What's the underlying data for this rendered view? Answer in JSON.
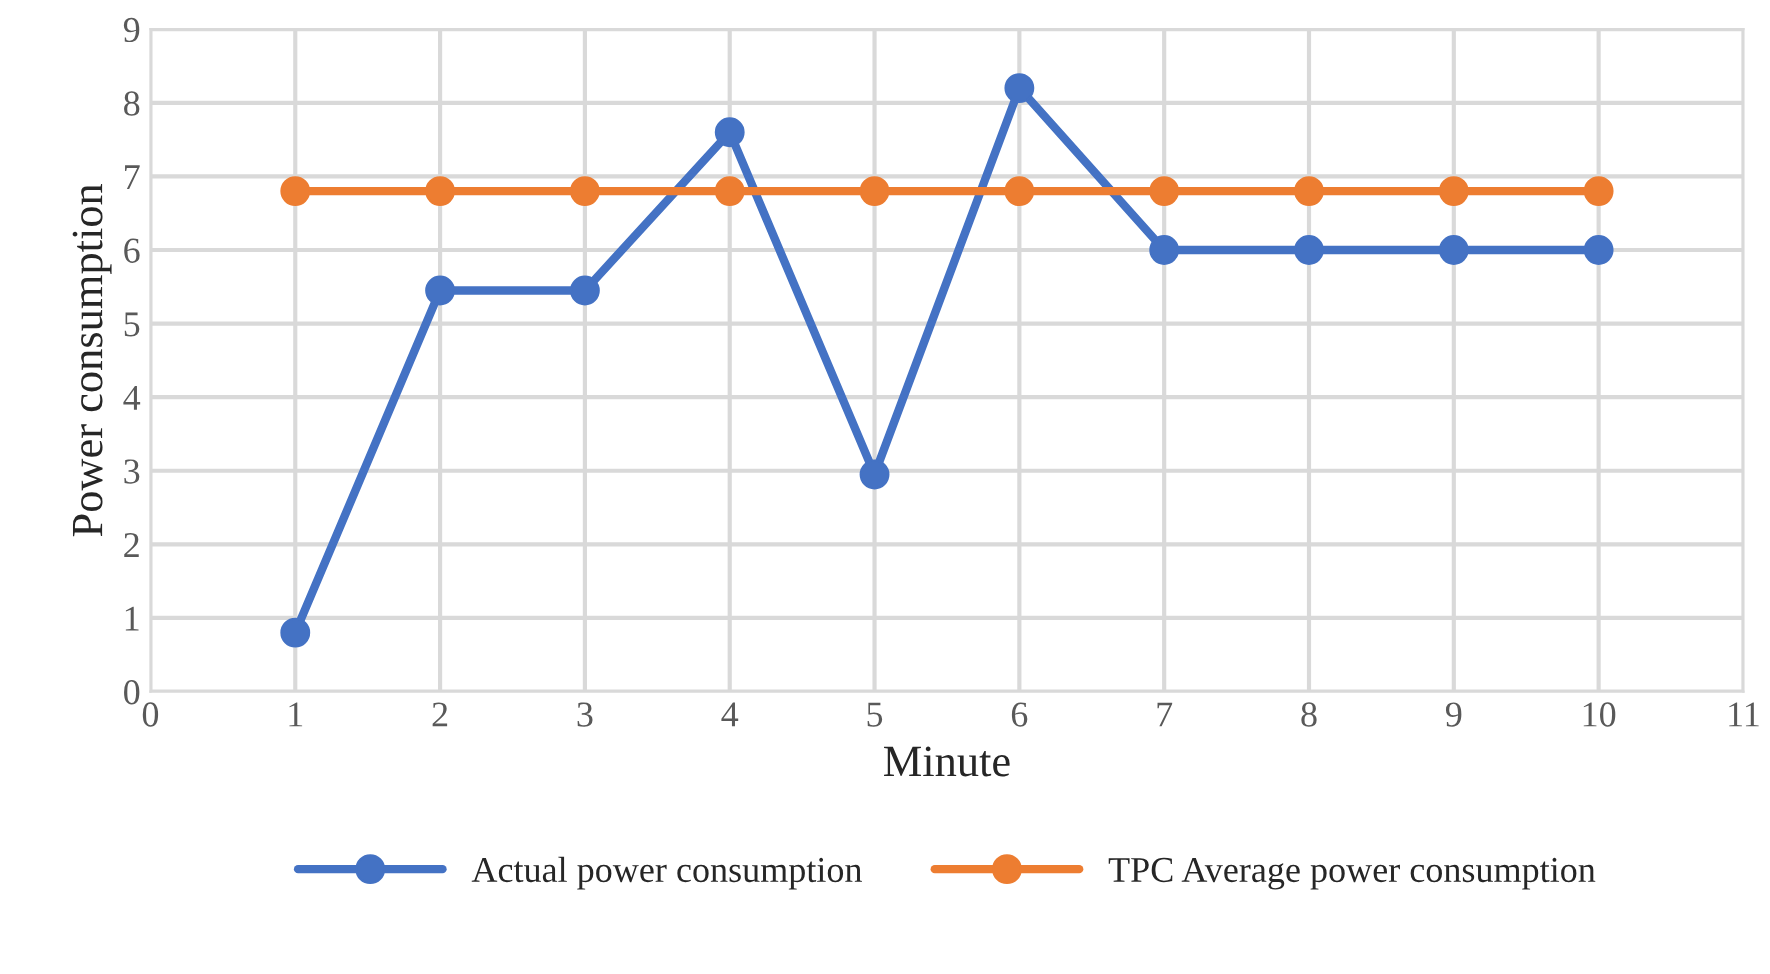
{
  "chart_data": {
    "type": "line",
    "xlabel": "Minute",
    "ylabel": "Power consumption",
    "x": [
      1,
      2,
      3,
      4,
      5,
      6,
      7,
      8,
      9,
      10
    ],
    "series": [
      {
        "name": "Actual power consumption",
        "color": "#4472c4",
        "values": [
          0.8,
          5.45,
          5.45,
          7.6,
          2.95,
          8.2,
          6.0,
          6.0,
          6.0,
          6.0
        ]
      },
      {
        "name": "TPC Average power consumption",
        "color": "#ed7d31",
        "values": [
          6.8,
          6.8,
          6.8,
          6.8,
          6.8,
          6.8,
          6.8,
          6.8,
          6.8,
          6.8
        ]
      }
    ],
    "xlim": [
      0,
      11
    ],
    "xticks": [
      0,
      1,
      2,
      3,
      4,
      5,
      6,
      7,
      8,
      9,
      10,
      11
    ],
    "ylim": [
      0,
      9
    ],
    "yticks": [
      0,
      1,
      2,
      3,
      4,
      5,
      6,
      7,
      8,
      9
    ],
    "grid": true,
    "legend": "bottom",
    "marker": "circle",
    "line_style": "solid"
  }
}
